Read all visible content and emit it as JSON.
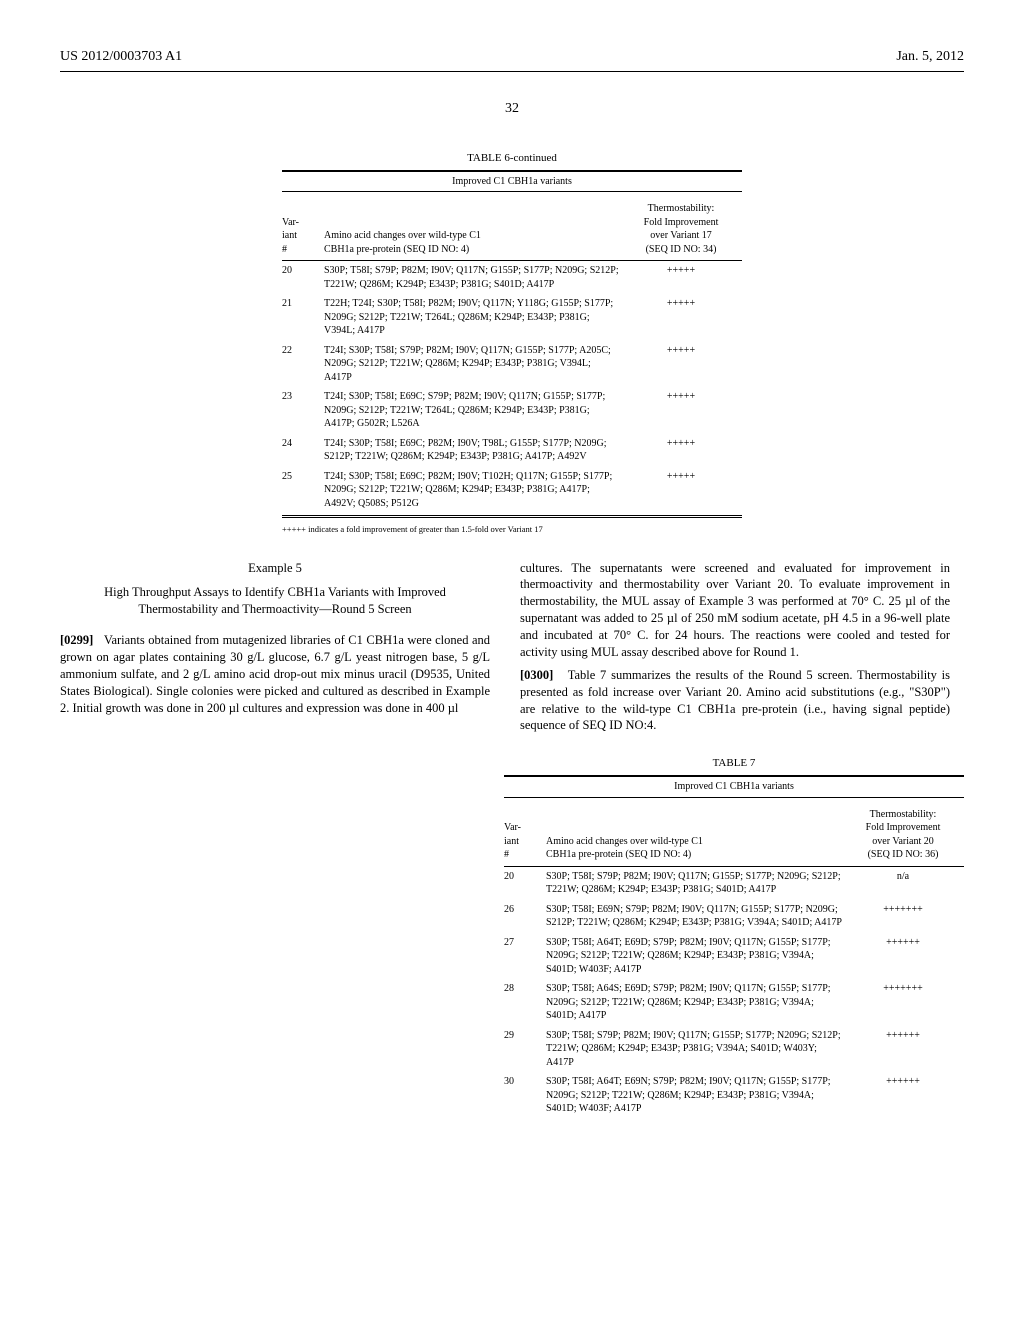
{
  "header": {
    "left": "US 2012/0003703 A1",
    "right": "Jan. 5, 2012"
  },
  "page_number": "32",
  "table6": {
    "caption": "TABLE 6-continued",
    "subcaption": "Improved C1 CBH1a variants",
    "col1": "Var-\niant\n#",
    "col2": "Amino acid changes over wild-type C1\nCBH1a pre-protein (SEQ ID NO: 4)",
    "col3": "Thermostability:\nFold Improvement\nover Variant 17\n(SEQ ID NO: 34)",
    "rows": [
      {
        "n": "20",
        "changes": "S30P; T58I; S79P; P82M; I90V; Q117N; G155P; S177P; N209G; S212P; T221W; Q286M; K294P; E343P; P381G; S401D; A417P",
        "ts": "+++++"
      },
      {
        "n": "21",
        "changes": "T22H; T24I; S30P; T58I; P82M; I90V; Q117N; Y118G; G155P; S177P; N209G; S212P; T221W; T264L; Q286M; K294P; E343P; P381G; V394L; A417P",
        "ts": "+++++"
      },
      {
        "n": "22",
        "changes": "T24I; S30P; T58I; S79P; P82M; I90V; Q117N; G155P; S177P; A205C; N209G; S212P; T221W; Q286M; K294P; E343P; P381G; V394L; A417P",
        "ts": "+++++"
      },
      {
        "n": "23",
        "changes": "T24I; S30P; T58I; E69C; S79P; P82M; I90V; Q117N; G155P; S177P; N209G; S212P; T221W; T264L; Q286M; K294P; E343P; P381G; A417P; G502R; L526A",
        "ts": "+++++"
      },
      {
        "n": "24",
        "changes": "T24I; S30P; T58I; E69C; P82M; I90V; T98L; G155P; S177P; N209G; S212P; T221W; Q286M; K294P; E343P; P381G; A417P; A492V",
        "ts": "+++++"
      },
      {
        "n": "25",
        "changes": "T24I; S30P; T58I; E69C; P82M; I90V; T102H; Q117N; G155P; S177P; N209G; S212P; T221W; Q286M; K294P; E343P; P381G; A417P; A492V; Q508S; P512G",
        "ts": "+++++"
      }
    ],
    "footnote": "+++++ indicates a fold improvement of greater than 1.5-fold over Variant 17"
  },
  "example5": {
    "heading": "Example 5",
    "subheading": "High Throughput Assays to Identify CBH1a Variants with Improved Thermostability and Thermoactivity—Round 5 Screen"
  },
  "para_left": {
    "num": "[0299]",
    "text": "Variants obtained from mutagenized libraries of C1 CBH1a were cloned and grown on agar plates containing 30 g/L glucose, 6.7 g/L yeast nitrogen base, 5 g/L ammonium sulfate, and 2 g/L amino acid drop-out mix minus uracil (D9535, United States Biological). Single colonies were picked and cultured as described in Example 2. Initial growth was done in 200 µl cultures and expression was done in 400 µl"
  },
  "para_right1": {
    "text": "cultures. The supernatants were screened and evaluated for improvement in thermoactivity and thermostability over Variant 20. To evaluate improvement in thermostability, the MUL assay of Example 3 was performed at 70° C. 25 µl of the supernatant was added to 25 µl of 250 mM sodium acetate, pH 4.5 in a 96-well plate and incubated at 70° C. for 24 hours. The reactions were cooled and tested for activity using MUL assay described above for Round 1."
  },
  "para_right2": {
    "num": "[0300]",
    "text": "Table 7 summarizes the results of the Round 5 screen. Thermostability is presented as fold increase over Variant 20. Amino acid substitutions (e.g., \"S30P\") are relative to the wild-type C1 CBH1a pre-protein (i.e., having signal peptide) sequence of SEQ ID NO:4."
  },
  "table7": {
    "caption": "TABLE 7",
    "subcaption": "Improved C1 CBH1a variants",
    "col1": "Var-\niant\n#",
    "col2": "Amino acid changes over wild-type C1\nCBH1a pre-protein (SEQ ID NO: 4)",
    "col3": "Thermostability:\nFold Improvement\nover Variant 20\n(SEQ ID NO: 36)",
    "rows": [
      {
        "n": "20",
        "changes": "S30P; T58I; S79P; P82M; I90V; Q117N; G155P; S177P; N209G; S212P; T221W; Q286M; K294P; E343P; P381G; S401D; A417P",
        "ts": "n/a"
      },
      {
        "n": "26",
        "changes": "S30P; T58I; E69N; S79P; P82M; I90V; Q117N; G155P; S177P; N209G; S212P; T221W; Q286M; K294P; E343P; P381G; V394A; S401D; A417P",
        "ts": "+++++++"
      },
      {
        "n": "27",
        "changes": "S30P; T58I; A64T; E69D; S79P; P82M; I90V; Q117N; G155P; S177P; N209G; S212P; T221W; Q286M; K294P; E343P; P381G; V394A; S401D; W403F; A417P",
        "ts": "++++++"
      },
      {
        "n": "28",
        "changes": "S30P; T58I; A64S; E69D; S79P; P82M; I90V; Q117N; G155P; S177P; N209G; S212P; T221W; Q286M; K294P; E343P; P381G; V394A; S401D; A417P",
        "ts": "+++++++"
      },
      {
        "n": "29",
        "changes": "S30P; T58I; S79P; P82M; I90V; Q117N; G155P; S177P; N209G; S212P; T221W; Q286M; K294P; E343P; P381G; V394A; S401D; W403Y; A417P",
        "ts": "++++++"
      },
      {
        "n": "30",
        "changes": "S30P; T58I; A64T; E69N; S79P; P82M; I90V; Q117N; G155P; S177P; N209G; S212P; T221W; Q286M; K294P; E343P; P381G; V394A; S401D; W403F; A417P",
        "ts": "++++++"
      }
    ]
  }
}
